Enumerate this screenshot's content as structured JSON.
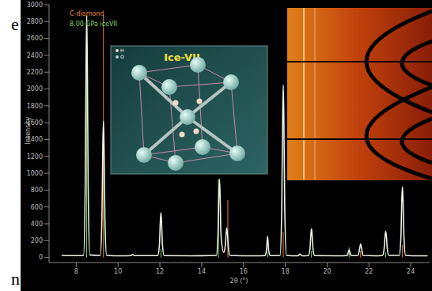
{
  "chart_data": {
    "type": "line",
    "x_label": "2θ (°)",
    "y_label": "Intensity",
    "xlim": [
      6.7,
      24.9
    ],
    "xticks": [
      8,
      10,
      12,
      14,
      16,
      18,
      20,
      22,
      24
    ],
    "ylim": [
      -60,
      3000
    ],
    "yticks": [
      0,
      200,
      400,
      600,
      800,
      1000,
      1200,
      1400,
      1600,
      1800,
      2000,
      2200,
      2400,
      2600,
      2800,
      3000
    ],
    "grid": false,
    "legend": "upper left",
    "annotations": [
      "Ice-VII",
      "H",
      "O",
      "e",
      "n"
    ],
    "series": [
      {
        "type": "line",
        "color": "#ecf2e4",
        "x": [
          7.3,
          8.0,
          8.35,
          8.43,
          8.47,
          8.5,
          8.53,
          8.57,
          8.65,
          9.15,
          9.23,
          9.27,
          9.3,
          9.33,
          9.37,
          9.45,
          10.2,
          10.6,
          10.7,
          10.8,
          11.9,
          11.98,
          12.02,
          12.05,
          12.08,
          12.12,
          12.2,
          13.5,
          14.7,
          14.78,
          14.82,
          14.85,
          14.88,
          14.92,
          15.05,
          15.13,
          15.17,
          15.2,
          15.23,
          15.27,
          15.35,
          16.5,
          17.02,
          17.1,
          17.13,
          17.15,
          17.17,
          17.2,
          17.28,
          17.75,
          17.83,
          17.87,
          17.9,
          17.93,
          17.97,
          18.05,
          18.6,
          18.7,
          18.8,
          19.1,
          19.18,
          19.22,
          19.25,
          19.28,
          19.32,
          19.4,
          20.5,
          20.95,
          21.01,
          21.05,
          21.09,
          21.15,
          21.48,
          21.55,
          21.58,
          21.6,
          21.62,
          21.65,
          21.72,
          22.3,
          22.65,
          22.73,
          22.77,
          22.8,
          22.83,
          22.87,
          22.95,
          23.45,
          23.53,
          23.57,
          23.6,
          23.63,
          23.67,
          23.75,
          24.4,
          24.8
        ],
        "values": [
          25,
          22,
          25,
          860,
          2300,
          2870,
          2300,
          860,
          30,
          25,
          490,
          1300,
          1620,
          1300,
          490,
          25,
          20,
          22,
          35,
          22,
          22,
          160,
          420,
          530,
          420,
          160,
          22,
          20,
          25,
          280,
          740,
          930,
          740,
          280,
          60,
          140,
          290,
          350,
          290,
          140,
          25,
          20,
          22,
          90,
          200,
          250,
          200,
          90,
          22,
          25,
          620,
          1640,
          2050,
          1640,
          620,
          25,
          20,
          40,
          20,
          22,
          110,
          270,
          340,
          270,
          110,
          22,
          20,
          22,
          60,
          90,
          60,
          22,
          24,
          100,
          140,
          160,
          140,
          100,
          24,
          20,
          25,
          120,
          260,
          310,
          260,
          120,
          25,
          25,
          260,
          680,
          840,
          680,
          260,
          25,
          20,
          20
        ]
      },
      {
        "type": "stick",
        "name": "C-diamond",
        "color": "#e8862e",
        "x": [
          9.3,
          15.25,
          17.9,
          21.6,
          23.6
        ],
        "values": [
          2880,
          680,
          300,
          80,
          150
        ]
      },
      {
        "type": "stick",
        "name": "8.00 GPa iceVII",
        "color": "#7fd35a",
        "x": [
          8.5,
          12.05,
          14.8,
          17.15,
          19.25,
          21.05,
          22.8
        ],
        "values": [
          2870,
          100,
          930,
          60,
          80,
          120,
          60
        ]
      }
    ]
  }
}
